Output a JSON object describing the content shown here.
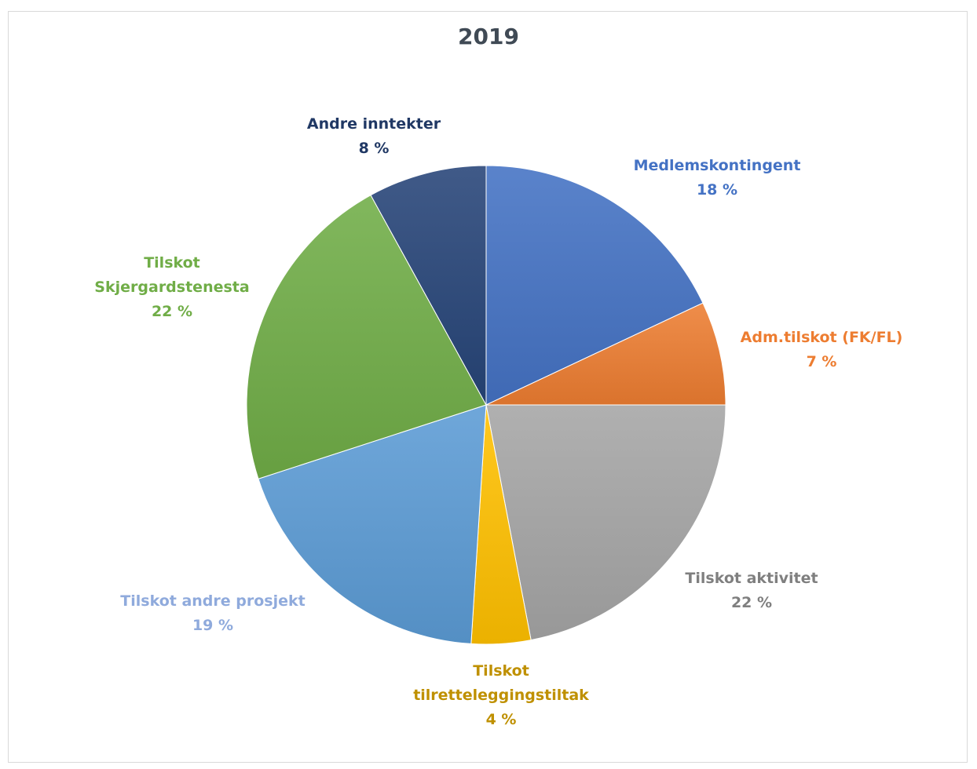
{
  "chart_data": {
    "type": "pie",
    "title": "2019",
    "slices": [
      {
        "name": "Medlemskontingent",
        "value": 18,
        "label": "18 %",
        "color": "#4472c4",
        "label_color": "#4472c4"
      },
      {
        "name": "Adm.tilskot (FK/FL)",
        "value": 7,
        "label": "7 %",
        "color": "#ed7d31",
        "label_color": "#ed7d31"
      },
      {
        "name": "Tilskot aktivitet",
        "value": 22,
        "label": "22 %",
        "color": "#a5a5a5",
        "label_color": "#7f7f7f"
      },
      {
        "name": "Tilskot tilretteleggingstiltak",
        "value": 4,
        "label": "4 %",
        "color": "#ffc000",
        "label_color": "#bf9000"
      },
      {
        "name": "Tilskot andre prosjekt",
        "value": 19,
        "label": "19 %",
        "color": "#5b9bd5",
        "label_color": "#8faadc"
      },
      {
        "name": "Tilskot Skjergardstenesta",
        "value": 22,
        "label": "22 %",
        "color": "#70ad47",
        "label_color": "#70ad47"
      },
      {
        "name": "Andre inntekter",
        "value": 8,
        "label": "8 %",
        "color": "#264478",
        "label_color": "#203864"
      }
    ],
    "label_lines": [
      [
        "Medlemskontingent",
        "18 %"
      ],
      [
        "Adm.tilskot (FK/FL)",
        "7 %"
      ],
      [
        "Tilskot aktivitet",
        "22 %"
      ],
      [
        "Tilskot",
        "tilretteleggingstiltak",
        "4 %"
      ],
      [
        "Tilskot andre prosjekt",
        "19 %"
      ],
      [
        "Tilskot",
        "Skjergardstenesta",
        "22 %"
      ],
      [
        "Andre inntekter",
        "8 %"
      ]
    ]
  }
}
